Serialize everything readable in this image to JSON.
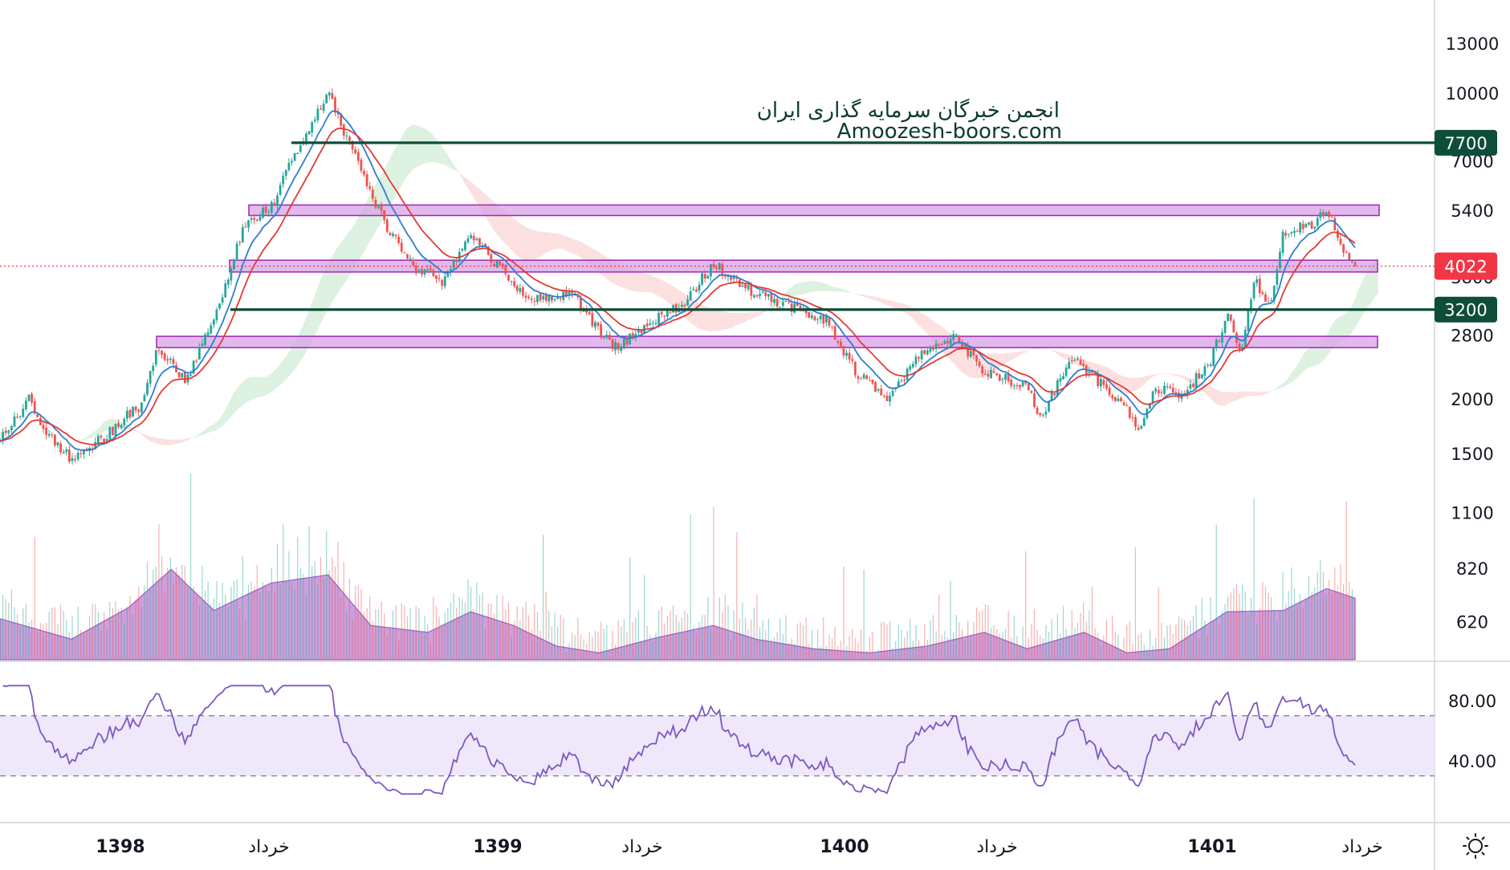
{
  "watermark": {
    "line1": "انجمن خبرگان سرمایه گذاری ایران",
    "line2": "Amoozesh-boors.com"
  },
  "colors": {
    "up": "#26a69a",
    "down": "#ef5350",
    "zone_fill": "#d8a2e6",
    "zone_stroke": "#9c27b0",
    "level_line": "#0e4d3a",
    "rsi_line": "#7e57c2",
    "rsi_band": "#efe8fb",
    "volume_area": "#c58ed6",
    "ma_red": "#e53935",
    "ma_blue": "#2f7dd1",
    "current_price": "#f23645"
  },
  "chart_data": {
    "type": "candlestick",
    "price_axis": {
      "scale": "log",
      "ticks": [
        13000,
        10000,
        7000,
        5400,
        3800,
        2800,
        2000,
        1500,
        1100,
        820,
        620
      ],
      "tick_labels": [
        "13000",
        "10000",
        "7000",
        "5400",
        "",
        "2800",
        "2000",
        "1500",
        "1100",
        "820",
        "620"
      ]
    },
    "time_axis": {
      "labels": [
        {
          "text": "1398",
          "bold": true
        },
        {
          "text": "خرداد",
          "bold": false
        },
        {
          "text": "1399",
          "bold": true
        },
        {
          "text": "خرداد",
          "bold": false
        },
        {
          "text": "1400",
          "bold": true
        },
        {
          "text": "خرداد",
          "bold": false
        },
        {
          "text": "1401",
          "bold": true
        },
        {
          "text": "خرداد",
          "bold": false
        }
      ]
    },
    "current_price": {
      "value": 4022,
      "label": "4022"
    },
    "horizontal_levels": [
      {
        "value": 7700,
        "label": "7700"
      },
      {
        "value": 3200,
        "label": "3200"
      }
    ],
    "zones": [
      {
        "low": 5250,
        "high": 5550
      },
      {
        "low": 3900,
        "high": 4150
      },
      {
        "low": 2620,
        "high": 2780
      }
    ],
    "price_path": [
      {
        "t": 0,
        "price": 1600
      },
      {
        "t": 2,
        "price": 2000
      },
      {
        "t": 3,
        "price": 1700
      },
      {
        "t": 5,
        "price": 1450
      },
      {
        "t": 8,
        "price": 1700
      },
      {
        "t": 9,
        "price": 1850
      },
      {
        "t": 10,
        "price": 1950
      },
      {
        "t": 11,
        "price": 2600
      },
      {
        "t": 13,
        "price": 2200
      },
      {
        "t": 15,
        "price": 3000
      },
      {
        "t": 17,
        "price": 4900
      },
      {
        "t": 19,
        "price": 5500
      },
      {
        "t": 21,
        "price": 7600
      },
      {
        "t": 23,
        "price": 10000
      },
      {
        "t": 25,
        "price": 7000
      },
      {
        "t": 27,
        "price": 5000
      },
      {
        "t": 29,
        "price": 4000
      },
      {
        "t": 31,
        "price": 3700
      },
      {
        "t": 33,
        "price": 4800
      },
      {
        "t": 35,
        "price": 4000
      },
      {
        "t": 37,
        "price": 3400
      },
      {
        "t": 40,
        "price": 3500
      },
      {
        "t": 43,
        "price": 2600
      },
      {
        "t": 45,
        "price": 2900
      },
      {
        "t": 48,
        "price": 3300
      },
      {
        "t": 50,
        "price": 4100
      },
      {
        "t": 52,
        "price": 3600
      },
      {
        "t": 55,
        "price": 3300
      },
      {
        "t": 58,
        "price": 3000
      },
      {
        "t": 60,
        "price": 2300
      },
      {
        "t": 62,
        "price": 2000
      },
      {
        "t": 65,
        "price": 2600
      },
      {
        "t": 67,
        "price": 2750
      },
      {
        "t": 69,
        "price": 2300
      },
      {
        "t": 72,
        "price": 2150
      },
      {
        "t": 73,
        "price": 1800
      },
      {
        "t": 75,
        "price": 2500
      },
      {
        "t": 77,
        "price": 2200
      },
      {
        "t": 79,
        "price": 1900
      },
      {
        "t": 80,
        "price": 1700
      },
      {
        "t": 81,
        "price": 2100
      },
      {
        "t": 83,
        "price": 2050
      },
      {
        "t": 85,
        "price": 2500
      },
      {
        "t": 86,
        "price": 3100
      },
      {
        "t": 87,
        "price": 2600
      },
      {
        "t": 88,
        "price": 3700
      },
      {
        "t": 89,
        "price": 3300
      },
      {
        "t": 90,
        "price": 4800
      },
      {
        "t": 92,
        "price": 5000
      },
      {
        "t": 93,
        "price": 5500
      },
      {
        "t": 94,
        "price": 4400
      },
      {
        "t": 95,
        "price": 4022
      }
    ],
    "rsi": {
      "levels": [
        70,
        30
      ],
      "tick_labels": [
        "80.00",
        "40.00"
      ],
      "ticks": [
        80,
        40
      ]
    },
    "volume": {
      "envelope": [
        {
          "t": 0,
          "v": 0.3
        },
        {
          "t": 5,
          "v": 0.15
        },
        {
          "t": 9,
          "v": 0.38
        },
        {
          "t": 12,
          "v": 0.66
        },
        {
          "t": 15,
          "v": 0.36
        },
        {
          "t": 19,
          "v": 0.56
        },
        {
          "t": 23,
          "v": 0.62
        },
        {
          "t": 26,
          "v": 0.25
        },
        {
          "t": 30,
          "v": 0.2
        },
        {
          "t": 33,
          "v": 0.35
        },
        {
          "t": 36,
          "v": 0.25
        },
        {
          "t": 39,
          "v": 0.1
        },
        {
          "t": 42,
          "v": 0.05
        },
        {
          "t": 46,
          "v": 0.16
        },
        {
          "t": 50,
          "v": 0.25
        },
        {
          "t": 53,
          "v": 0.15
        },
        {
          "t": 57,
          "v": 0.08
        },
        {
          "t": 61,
          "v": 0.05
        },
        {
          "t": 65,
          "v": 0.1
        },
        {
          "t": 69,
          "v": 0.2
        },
        {
          "t": 72,
          "v": 0.08
        },
        {
          "t": 76,
          "v": 0.2
        },
        {
          "t": 79,
          "v": 0.05
        },
        {
          "t": 82,
          "v": 0.08
        },
        {
          "t": 86,
          "v": 0.35
        },
        {
          "t": 90,
          "v": 0.36
        },
        {
          "t": 93,
          "v": 0.52
        },
        {
          "t": 95,
          "v": 0.45
        }
      ]
    }
  }
}
